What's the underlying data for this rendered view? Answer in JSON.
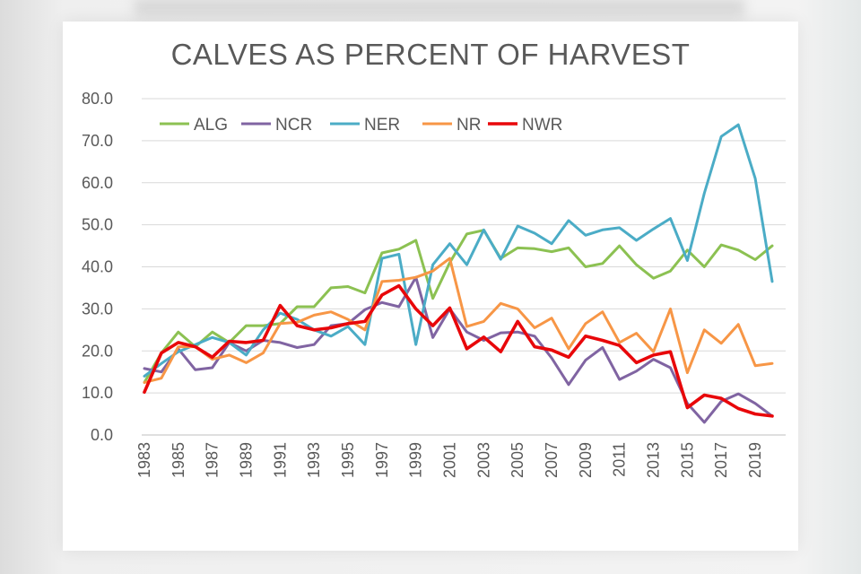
{
  "chart_data": {
    "type": "line",
    "title": "CALVES AS PERCENT OF HARVEST",
    "xlabel": "",
    "ylabel": "",
    "ylim": [
      0,
      80
    ],
    "y_ticks": [
      "0.0",
      "10.0",
      "20.0",
      "30.0",
      "40.0",
      "50.0",
      "60.0",
      "70.0",
      "80.0"
    ],
    "x_tick_labels": [
      "1983",
      "1985",
      "1987",
      "1989",
      "1991",
      "1993",
      "1995",
      "1997",
      "1999",
      "2001",
      "2003",
      "2005",
      "2007",
      "2009",
      "2011",
      "2013",
      "2015",
      "2017",
      "2019"
    ],
    "grid": true,
    "legend_position": "top-left",
    "x": [
      1983,
      1984,
      1985,
      1986,
      1987,
      1988,
      1989,
      1990,
      1991,
      1992,
      1993,
      1994,
      1995,
      1996,
      1997,
      1998,
      1999,
      2000,
      2001,
      2002,
      2003,
      2004,
      2005,
      2006,
      2007,
      2008,
      2009,
      2010,
      2011,
      2012,
      2013,
      2014,
      2015,
      2016,
      2017,
      2018,
      2019,
      2020
    ],
    "series": [
      {
        "name": "ALG",
        "color": "#8cc152",
        "values": [
          12.5,
          19.5,
          24.5,
          21.0,
          24.5,
          22.0,
          26.0,
          26.0,
          26.5,
          30.5,
          30.5,
          35.0,
          35.3,
          33.8,
          43.3,
          44.2,
          46.3,
          32.5,
          41.0,
          47.8,
          48.7,
          42.0,
          44.5,
          44.3,
          43.6,
          44.5,
          40.0,
          40.8,
          45.0,
          40.5,
          37.3,
          39.0,
          44.0,
          40.0,
          45.2,
          44.0,
          41.7,
          45.0
        ]
      },
      {
        "name": "NCR",
        "color": "#8064a2",
        "values": [
          15.8,
          15.0,
          20.5,
          15.5,
          16.0,
          22.0,
          20.0,
          22.5,
          22.0,
          20.8,
          21.5,
          26.0,
          26.5,
          29.8,
          31.5,
          30.5,
          37.5,
          23.2,
          30.0,
          24.5,
          22.5,
          24.3,
          24.5,
          23.5,
          18.3,
          12.0,
          17.8,
          20.8,
          13.2,
          15.2,
          18.0,
          16.0,
          7.5,
          3.0,
          8.0,
          9.8,
          7.5,
          4.5
        ]
      },
      {
        "name": "NER",
        "color": "#4bacc6",
        "values": [
          14.0,
          17.0,
          19.8,
          21.5,
          23.2,
          22.0,
          19.0,
          25.0,
          29.0,
          27.5,
          25.0,
          23.5,
          25.8,
          21.5,
          42.0,
          43.0,
          21.5,
          40.5,
          45.5,
          40.5,
          48.8,
          41.8,
          49.7,
          48.0,
          45.5,
          51.0,
          47.5,
          48.8,
          49.3,
          46.3,
          49.0,
          51.5,
          41.5,
          57.5,
          71.0,
          73.8,
          61.0,
          36.5
        ]
      },
      {
        "name": "NR",
        "color": "#f79646",
        "values": [
          12.5,
          13.5,
          21.0,
          21.0,
          18.0,
          19.0,
          17.2,
          19.5,
          26.5,
          26.8,
          28.5,
          29.3,
          27.5,
          25.0,
          36.5,
          36.8,
          37.5,
          39.0,
          42.0,
          25.8,
          27.0,
          31.3,
          30.0,
          25.5,
          27.8,
          20.5,
          26.5,
          29.3,
          22.0,
          24.2,
          19.8,
          30.0,
          14.8,
          25.0,
          21.8,
          26.3,
          16.5,
          17.0
        ]
      },
      {
        "name": "NWR",
        "color": "#e8070a",
        "values": [
          10.2,
          19.5,
          22.0,
          21.0,
          18.5,
          22.3,
          22.0,
          22.5,
          30.8,
          26.0,
          25.0,
          25.5,
          26.5,
          27.0,
          33.3,
          35.5,
          30.0,
          26.0,
          30.2,
          20.5,
          23.3,
          19.8,
          27.0,
          21.0,
          20.2,
          18.5,
          23.5,
          22.5,
          21.3,
          17.2,
          19.0,
          19.8,
          6.5,
          9.5,
          8.7,
          6.3,
          5.0,
          4.5
        ]
      }
    ]
  }
}
